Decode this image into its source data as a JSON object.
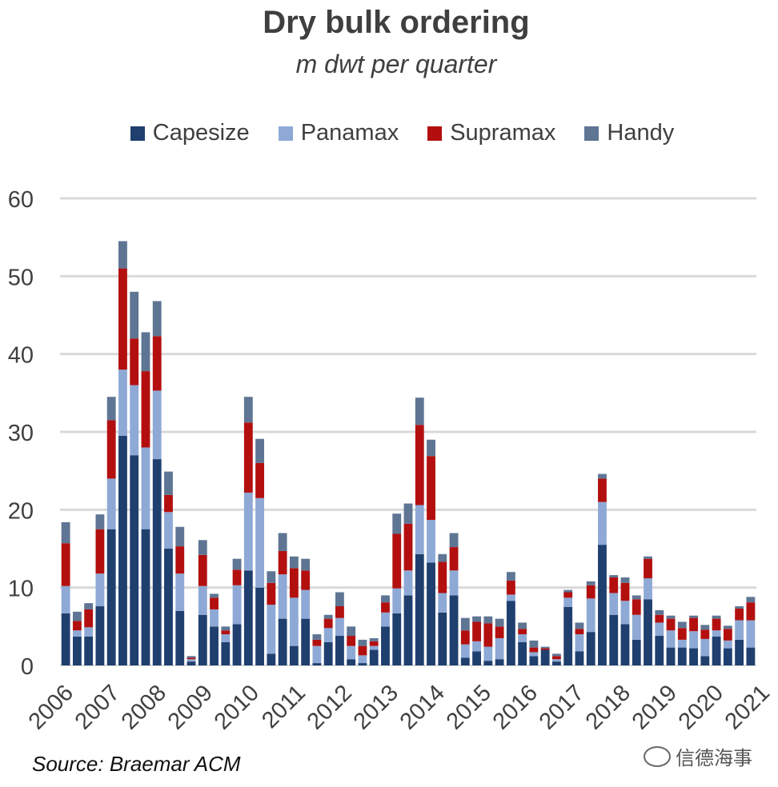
{
  "chart_data": {
    "type": "bar",
    "stacked": true,
    "title": "Dry bulk ordering",
    "subtitle": "m dwt per quarter",
    "xlabel": "",
    "ylabel": "",
    "ylim": [
      0,
      60
    ],
    "yticks": [
      "0",
      "10",
      "20",
      "30",
      "40",
      "50",
      "60"
    ],
    "year_labels": [
      "2006",
      "2007",
      "2008",
      "2009",
      "2010",
      "2011",
      "2012",
      "2013",
      "2014",
      "2015",
      "2016",
      "2017",
      "2018",
      "2019",
      "2020",
      "2021"
    ],
    "grid": true,
    "legend_position": "top",
    "series": [
      {
        "name": "Capesize",
        "color": "#1F3F6E",
        "values": [
          6.7,
          3.7,
          3.7,
          7.6,
          17.5,
          29.5,
          27.0,
          17.5,
          26.5,
          15.0,
          7.0,
          0.5,
          6.5,
          5.0,
          3.0,
          5.3,
          12.2,
          10.0,
          1.5,
          6.0,
          2.5,
          6.0,
          0.3,
          3.0,
          3.8,
          0.8,
          0.3,
          2.0,
          5.0,
          6.7,
          9.0,
          14.3,
          13.2,
          6.8,
          9.0,
          1.0,
          1.8,
          0.6,
          0.8,
          8.3,
          3.0,
          1.2,
          2.0,
          0.5,
          7.5,
          1.8,
          4.3,
          15.5,
          6.5,
          5.3,
          3.3,
          8.5,
          3.8,
          2.3,
          2.3,
          2.2,
          1.2,
          3.7,
          2.2,
          3.3,
          2.3
        ]
      },
      {
        "name": "Panamax",
        "color": "#8EA9D5",
        "values": [
          3.5,
          0.8,
          1.2,
          4.2,
          6.5,
          8.5,
          9.0,
          10.5,
          8.8,
          4.7,
          4.8,
          0.3,
          3.7,
          2.2,
          1.0,
          5.0,
          10.0,
          11.5,
          6.3,
          5.7,
          6.2,
          3.7,
          2.2,
          1.8,
          2.3,
          1.7,
          1.0,
          0.5,
          1.8,
          3.2,
          3.2,
          6.3,
          5.5,
          2.5,
          3.2,
          1.7,
          1.3,
          1.8,
          2.7,
          0.8,
          1.0,
          0.5,
          0.0,
          0.3,
          1.2,
          2.2,
          4.3,
          5.5,
          2.8,
          3.0,
          3.2,
          2.7,
          1.7,
          2.2,
          1.0,
          2.2,
          2.2,
          0.8,
          1.0,
          2.5,
          3.5
        ]
      },
      {
        "name": "Supramax",
        "color": "#B30F0F",
        "values": [
          5.5,
          1.2,
          2.3,
          5.7,
          7.5,
          13.0,
          6.0,
          9.8,
          7.0,
          2.2,
          3.5,
          0.2,
          4.0,
          1.5,
          0.5,
          2.0,
          9.0,
          4.5,
          2.8,
          3.0,
          3.8,
          2.5,
          0.8,
          1.2,
          1.5,
          1.3,
          1.2,
          0.6,
          1.3,
          7.0,
          6.0,
          10.3,
          8.2,
          4.0,
          3.0,
          1.8,
          2.5,
          3.0,
          1.5,
          1.8,
          0.7,
          0.6,
          0.2,
          0.4,
          0.7,
          0.7,
          1.7,
          3.0,
          2.0,
          2.3,
          2.0,
          2.5,
          1.0,
          1.5,
          1.5,
          1.7,
          1.2,
          1.5,
          1.5,
          1.5,
          2.3
        ]
      },
      {
        "name": "Handy",
        "color": "#5E7593",
        "values": [
          2.7,
          1.2,
          0.8,
          1.9,
          3.0,
          3.5,
          6.0,
          5.0,
          4.5,
          3.0,
          2.5,
          0.2,
          1.9,
          0.5,
          0.5,
          1.4,
          3.3,
          3.1,
          1.5,
          2.3,
          1.5,
          1.5,
          0.7,
          0.5,
          1.8,
          1.2,
          0.8,
          0.4,
          0.9,
          2.6,
          2.6,
          3.5,
          2.1,
          1.0,
          1.8,
          1.6,
          0.7,
          0.9,
          1.0,
          1.1,
          0.8,
          0.9,
          0.2,
          0.3,
          0.3,
          0.8,
          0.5,
          0.6,
          0.3,
          0.7,
          0.5,
          0.3,
          0.6,
          0.4,
          0.8,
          0.3,
          0.6,
          0.4,
          0.4,
          0.3,
          0.7
        ]
      }
    ]
  },
  "source": "Source: Braemar ACM",
  "watermark": "信德海事"
}
